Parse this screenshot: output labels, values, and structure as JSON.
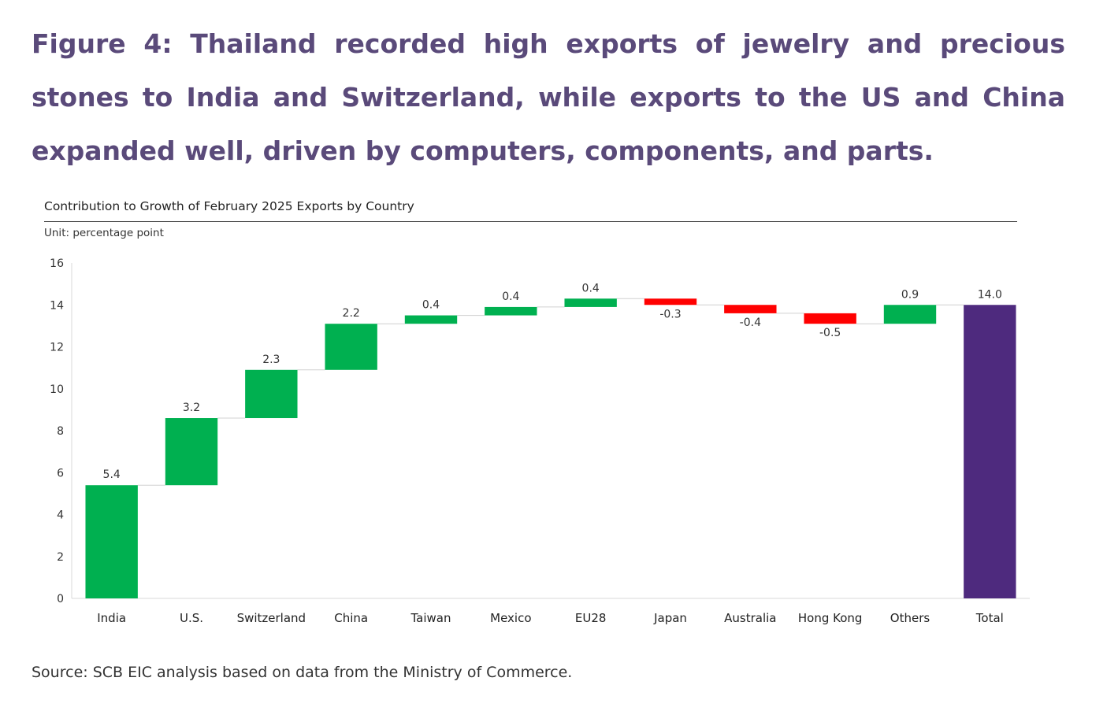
{
  "figure": {
    "title": "Figure 4: Thailand recorded high exports of jewelry and precious stones to India and Switzerland, while exports to the US and China expanded well, driven by computers, components, and parts.",
    "source": "Source: SCB EIC analysis based on data from the Ministry of Commerce."
  },
  "chart_data": {
    "type": "bar",
    "subtype": "waterfall",
    "title": "Contribution to Growth of February 2025 Exports by Country",
    "unit": "Unit: percentage point",
    "xlabel": "",
    "ylabel": "",
    "ylim": [
      0,
      16
    ],
    "yticks": [
      "0",
      "2",
      "4",
      "6",
      "8",
      "10",
      "12",
      "14",
      "16"
    ],
    "grid": false,
    "legend": "none",
    "categories": [
      "India",
      "U.S.",
      "Switzerland",
      "China",
      "Taiwan",
      "Mexico",
      "EU28",
      "Japan",
      "Australia",
      "Hong Kong",
      "Others",
      "Total"
    ],
    "values": [
      5.4,
      3.2,
      2.3,
      2.2,
      0.4,
      0.4,
      0.4,
      -0.3,
      -0.4,
      -0.5,
      0.9,
      14.0
    ],
    "labels": [
      "5.4",
      "3.2",
      "2.3",
      "2.2",
      "0.4",
      "0.4",
      "0.4",
      "-0.3",
      "-0.4",
      "-0.5",
      "0.9",
      "14.0"
    ],
    "total_index": 11,
    "colors": {
      "positive": "#00b050",
      "negative": "#ff0000",
      "total": "#4e2a7e",
      "connector": "#d0d0d0",
      "axis": "#d9d9d9",
      "text": "#333333"
    }
  }
}
